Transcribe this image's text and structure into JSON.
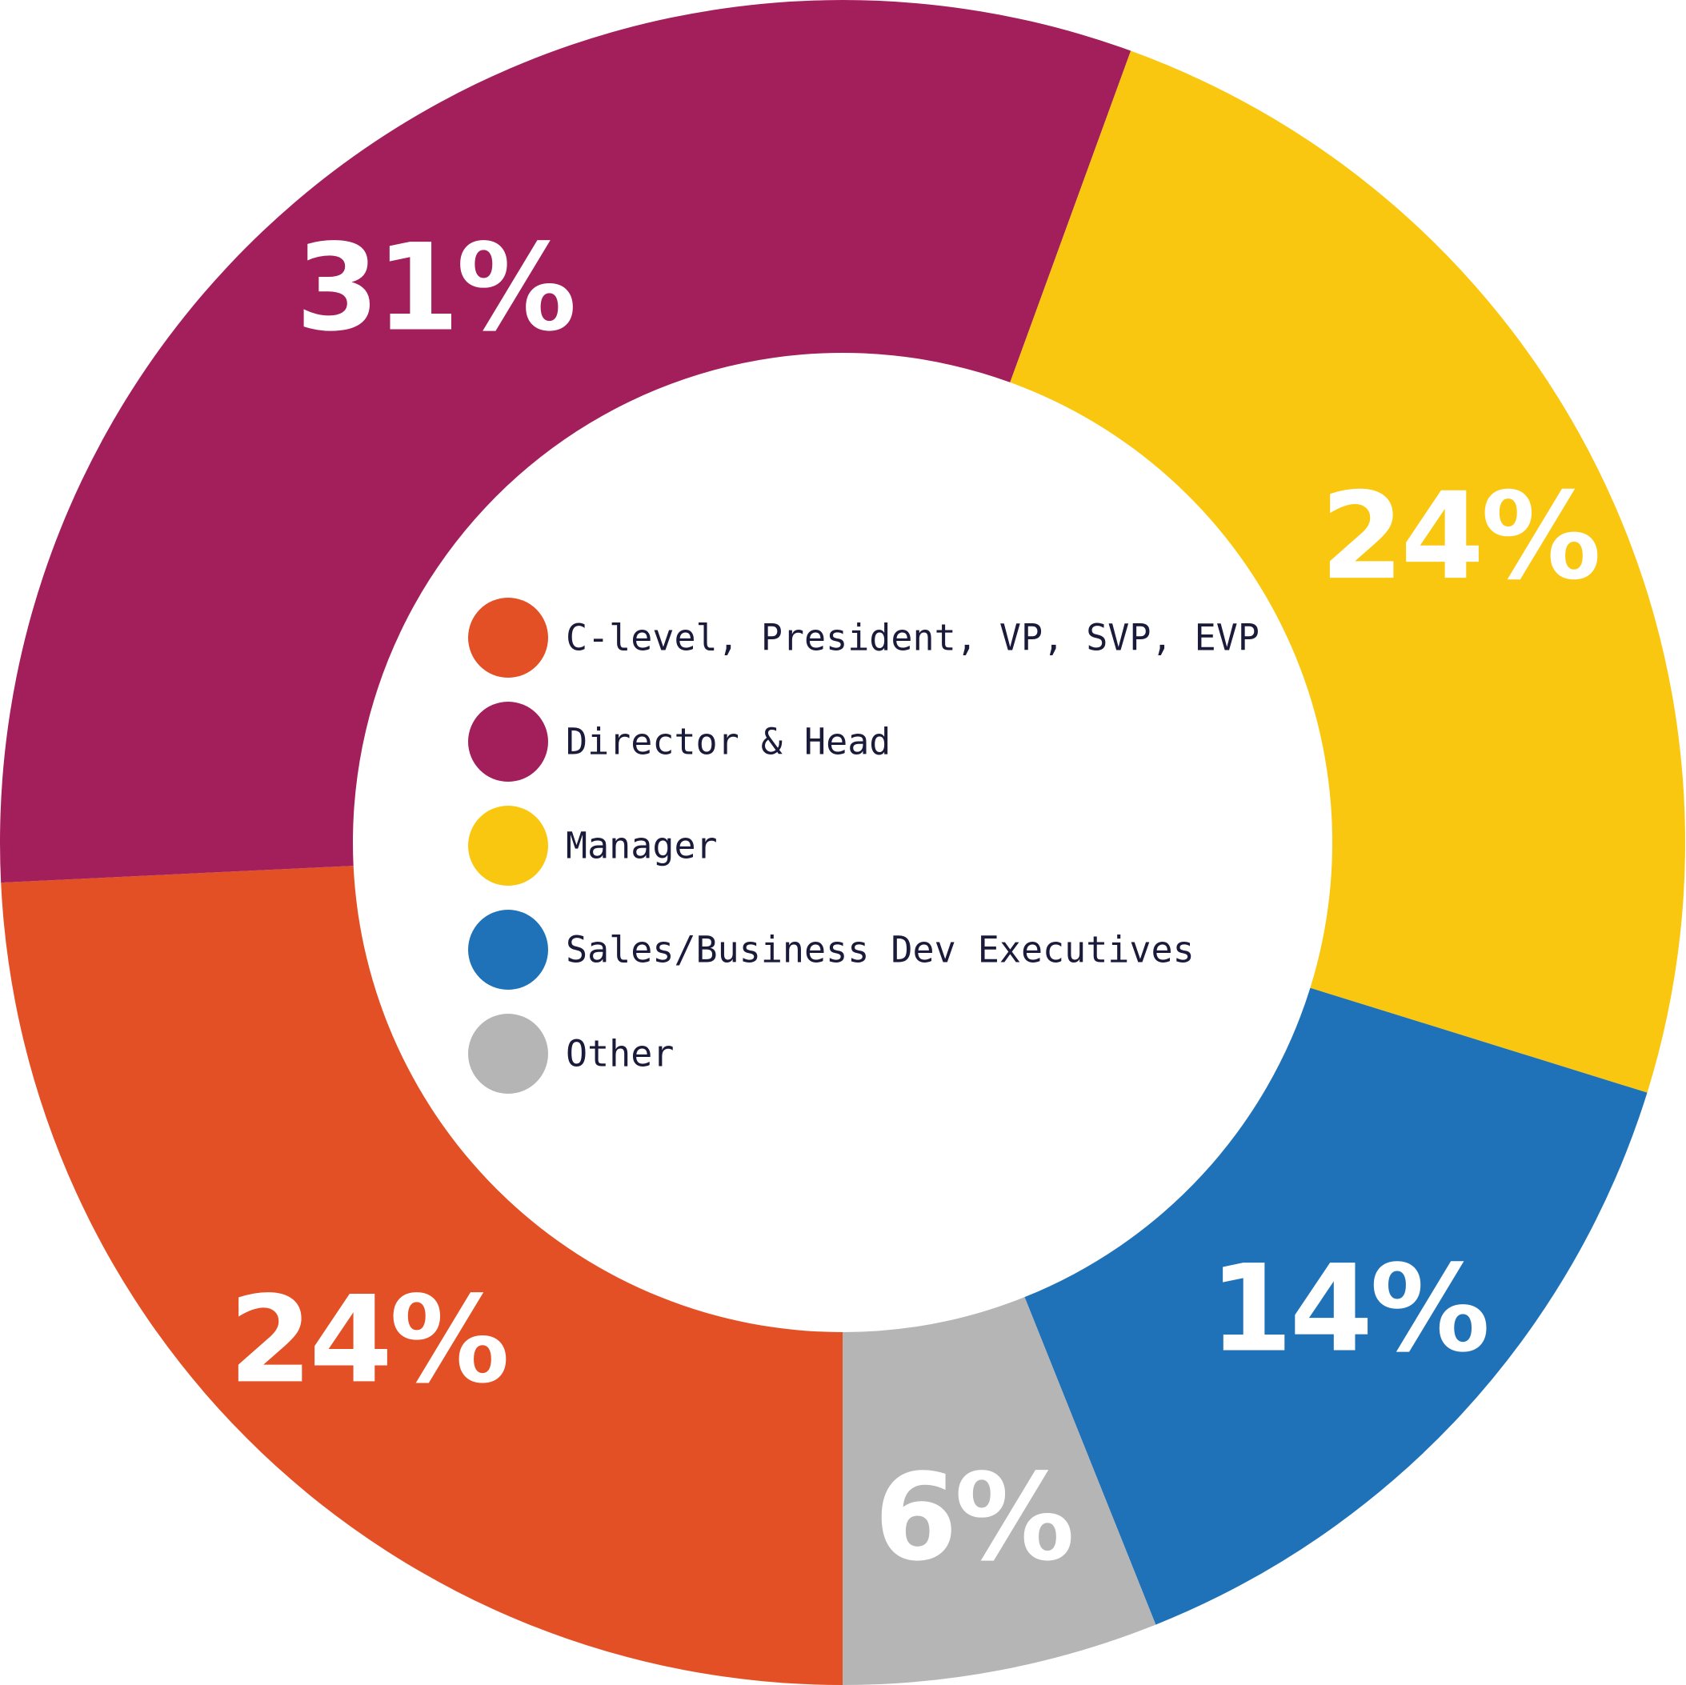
{
  "chart_data": {
    "type": "pie",
    "donut": true,
    "categories": [
      "C-level, President, VP, SVP, EVP",
      "Director & Head",
      "Manager",
      "Sales/Business Dev Executives",
      "Other"
    ],
    "values": [
      24,
      31,
      24,
      14,
      6
    ],
    "labels": [
      "24%",
      "31%",
      "24%",
      "14%",
      "6%"
    ],
    "colors": [
      "#E35025",
      "#A31F5B",
      "#FAC710",
      "#1F72B8",
      "#B5B5B5"
    ],
    "legend_colors": [
      "#E35025",
      "#A31F5B",
      "#FAC710",
      "#1F72B8",
      "#B5B5B5"
    ],
    "title": "",
    "legend_placement": "center"
  }
}
